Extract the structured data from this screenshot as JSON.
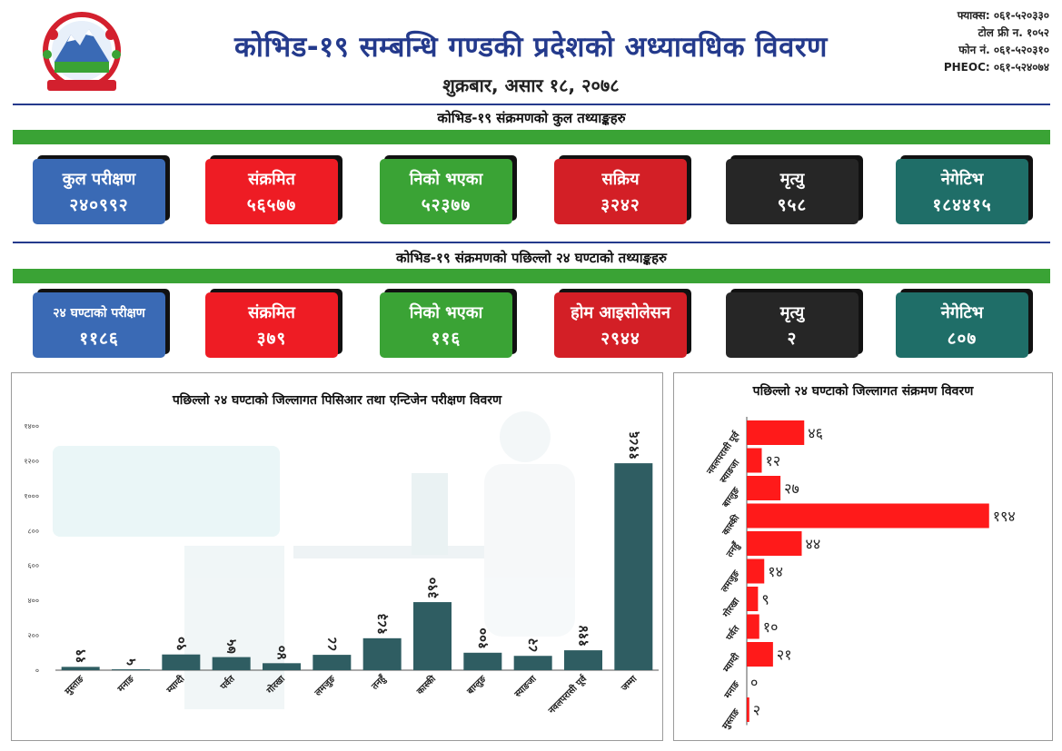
{
  "header": {
    "title": "कोभिड-१९ सम्बन्धि गण्डकी प्रदेशको अध्यावधिक विवरण",
    "date": "शुक्रबार, असार १८, २०७८",
    "contacts": [
      "फ्याक्स: ०६१-५२०३३०",
      "टोल फ्री न. १०५२",
      "फोन नं. ०६१-५२०३१०",
      "PHEOC: ०६१-५२४०७४"
    ]
  },
  "section_total": {
    "title": "कोभिड-१९ संक्रमणको कुल तथ्याङ्कहरु",
    "cards": [
      {
        "label": "कुल परीक्षण",
        "value": "२४०९९२",
        "color": "#3a6ab5"
      },
      {
        "label": "संक्रमित",
        "value": "५६५७७",
        "color": "#ee1c24"
      },
      {
        "label": "निको भएका",
        "value": "५२३७७",
        "color": "#3aa335"
      },
      {
        "label": "सक्रिय",
        "value": "३२४२",
        "color": "#d31f26"
      },
      {
        "label": "मृत्यु",
        "value": "९५८",
        "color": "#262626"
      },
      {
        "label": "नेगेटिभ",
        "value": "१८४४१५",
        "color": "#1f6e68"
      }
    ]
  },
  "section_24h": {
    "title": "कोभिड-१९ संक्रमणको पछिल्लो २४ घण्टाको तथ्याङ्कहरु",
    "cards": [
      {
        "label": "२४ घण्टाको परीक्षण",
        "value": "११८६",
        "color": "#3a6ab5"
      },
      {
        "label": "संक्रमित",
        "value": "३७९",
        "color": "#ee1c24"
      },
      {
        "label": "निको भएका",
        "value": "११६",
        "color": "#3aa335"
      },
      {
        "label": "होम आइसोलेसन",
        "value": "२९४४",
        "color": "#d31f26"
      },
      {
        "label": "मृत्यु",
        "value": "२",
        "color": "#262626"
      },
      {
        "label": "नेगेटिभ",
        "value": "८०७",
        "color": "#1f6e68"
      }
    ]
  },
  "chart_data": [
    {
      "type": "bar",
      "title": "पछिल्लो २४ घण्टाको जिल्लागत पिसिआर तथा एन्टिजेन परीक्षण विवरण",
      "categories": [
        "मुस्ताङ",
        "मनाङ",
        "म्याग्दी",
        "पर्वत",
        "गोरखा",
        "लमजुङ",
        "तनहुँ",
        "कास्की",
        "बाग्लुङ",
        "स्याङजा",
        "नवलपरासी पूर्व",
        "जम्मा"
      ],
      "values": [
        19,
        5,
        90,
        75,
        40,
        88,
        183,
        390,
        100,
        82,
        114,
        1186
      ],
      "value_labels": [
        "१९",
        "५",
        "९०",
        "७५",
        "४०",
        "८८",
        "१८३",
        "३९०",
        "१००",
        "८२",
        "११४",
        "११८६"
      ],
      "ylim": [
        0,
        1400
      ],
      "yticks": [
        0,
        200,
        400,
        600,
        800,
        1000,
        1200,
        1400
      ],
      "ytick_labels": [
        "०",
        "२००",
        "४००",
        "६००",
        "८००",
        "१०००",
        "१२००",
        "१४००"
      ],
      "bar_color": "#2f5d62"
    },
    {
      "type": "bar",
      "orientation": "horizontal",
      "title": "पछिल्लो २४ घण्टाको जिल्लागत संक्रमण विवरण",
      "categories": [
        "नवलपरासी पूर्व",
        "स्याङजा",
        "बाग्लुङ",
        "कास्की",
        "तनहुँ",
        "लमजुङ",
        "गोरखा",
        "पर्वत",
        "म्याग्दी",
        "मनाङ",
        "मुस्ताङ"
      ],
      "values": [
        46,
        12,
        27,
        194,
        44,
        14,
        9,
        10,
        21,
        0,
        2
      ],
      "value_labels": [
        "४६",
        "१२",
        "२७",
        "१९४",
        "४४",
        "१४",
        "९",
        "१०",
        "२१",
        "०",
        "२"
      ],
      "xlim": [
        0,
        200
      ],
      "bar_color": "#ff1a1a"
    }
  ]
}
